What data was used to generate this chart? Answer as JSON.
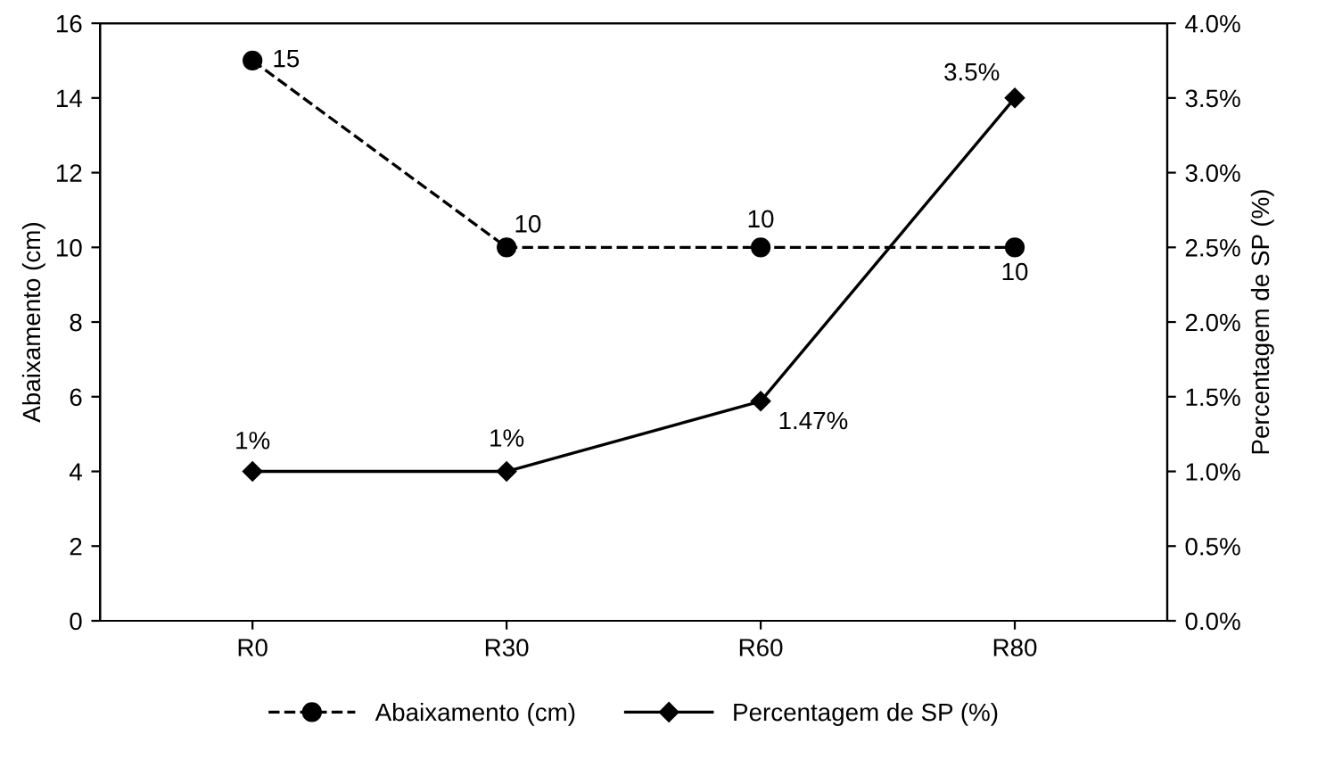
{
  "chart_data": {
    "type": "line",
    "categories": [
      "R0",
      "R30",
      "R60",
      "R80"
    ],
    "ylabel": "Abaixamento (cm)",
    "y2label": "Percentagem de SP (%)",
    "ylim": [
      0,
      16
    ],
    "yticks": [
      0,
      2,
      4,
      6,
      8,
      10,
      12,
      14,
      16
    ],
    "y2lim": [
      0,
      4
    ],
    "y2ticks": [
      {
        "value": 0,
        "label": "0.0%"
      },
      {
        "value": 0.5,
        "label": "0.5%"
      },
      {
        "value": 1,
        "label": "1.0%"
      },
      {
        "value": 1.5,
        "label": "1.5%"
      },
      {
        "value": 2,
        "label": "2.0%"
      },
      {
        "value": 2.5,
        "label": "2.5%"
      },
      {
        "value": 3,
        "label": "3.0%"
      },
      {
        "value": 3.5,
        "label": "3.5%"
      },
      {
        "value": 4,
        "label": "4.0%"
      }
    ],
    "series": [
      {
        "name": "Abaixamento (cm)",
        "color": "#000000",
        "values": [
          15,
          10,
          10,
          10
        ],
        "marker": "circle",
        "line_style": "dashed",
        "value_labels": [
          "15",
          "10",
          "10",
          "10"
        ]
      },
      {
        "name": "Percentagem de SP (%)",
        "color": "#000000",
        "values": [
          1,
          1,
          1.47,
          3.5
        ],
        "axis": "y2",
        "marker": "diamond",
        "line_style": "solid",
        "value_labels": [
          "1%",
          "1%",
          "1.47%",
          "3.5%"
        ]
      }
    ],
    "legend": "bottom",
    "grid": false
  }
}
